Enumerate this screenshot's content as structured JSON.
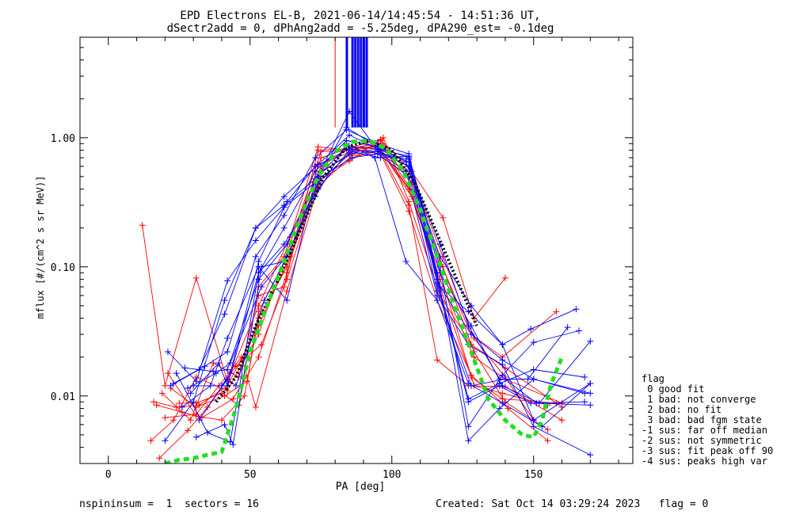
{
  "title": {
    "line1": "EPD Electrons EL-B, 2021-06-14/14:45:54 - 14:51:36 UT,",
    "line2": "dSectr2add = 0, dPhAng2add = -5.25deg, dPA290_est=  -0.1deg"
  },
  "footer": {
    "left": "nspininsum =  1  sectors = 16",
    "right": "Created: Sat Oct 14 03:29:24 2023   flag = 0"
  },
  "legend": {
    "title": "flag",
    "items": [
      " 0 good fit",
      " 1 bad: not converge",
      " 2 bad: no fit",
      " 3 bad: bad fgm state",
      "-1 sus: far off median",
      "-2 sus: not symmetric",
      "-3 sus: fit peak off 90",
      "-4 sus: peaks high var"
    ]
  },
  "colors": {
    "red_series": "#ff0000",
    "blue_series": "#0000ff",
    "fit_green": "#22dd22",
    "median_black": "#000000"
  },
  "chart_data": {
    "type": "line",
    "title": "EPD Electrons EL-B, 2021-06-14/14:45:54 - 14:51:36 UT,",
    "subtitle": "dSectr2add = 0, dPhAng2add = -5.25deg, dPA290_est=  -0.1deg",
    "xlabel": "PA [deg]",
    "ylabel": "mflux [#/(cm^2 s sr MeV)]",
    "xlim": [
      -10,
      185
    ],
    "ylim": [
      0.003,
      6.0
    ],
    "yscale": "log",
    "xticks": [
      0,
      50,
      100,
      150
    ],
    "xtick_labels": [
      "0",
      "50",
      "100",
      "150"
    ],
    "yticks": [
      0.01,
      0.1,
      1.0
    ],
    "ytick_labels": [
      "0.01",
      "0.10",
      "1.00"
    ],
    "grid": false,
    "series": [
      {
        "color": "#ff0000",
        "x": [
          12,
          20,
          31,
          42,
          53,
          64,
          75,
          86,
          96,
          107,
          118,
          129,
          140
        ],
        "y": [
          0.21,
          0.012,
          0.082,
          0.013,
          0.05,
          0.17,
          0.6,
          0.85,
          0.97,
          0.55,
          0.24,
          0.04,
          0.082
        ]
      },
      {
        "color": "#ff0000",
        "x": [
          15,
          23,
          31,
          42,
          53,
          64,
          75,
          86,
          96,
          107,
          118,
          129,
          140,
          150
        ],
        "y": [
          0.0045,
          0.0065,
          0.014,
          0.011,
          0.03,
          0.15,
          0.78,
          0.8,
          0.95,
          0.5,
          0.12,
          0.028,
          0.014,
          0.0065
        ]
      },
      {
        "color": "#ff0000",
        "x": [
          16,
          24,
          32,
          42,
          53,
          64,
          75,
          86,
          96,
          107,
          118,
          129,
          140,
          155
        ],
        "y": [
          0.009,
          0.0082,
          0.0085,
          0.012,
          0.035,
          0.12,
          0.55,
          0.75,
          0.9,
          0.45,
          0.1,
          0.022,
          0.009,
          0.0055
        ]
      },
      {
        "color": "#ff0000",
        "x": [
          17,
          26,
          33,
          44,
          53,
          63,
          74,
          85,
          96,
          107,
          117,
          128,
          139,
          158
        ],
        "y": [
          0.0085,
          0.0075,
          0.0068,
          0.0095,
          0.02,
          0.09,
          0.62,
          0.77,
          0.82,
          0.38,
          0.07,
          0.014,
          0.0095,
          0.0088
        ]
      },
      {
        "color": "#ff0000",
        "x": [
          18,
          28,
          35,
          45,
          54,
          63,
          74,
          85,
          97,
          106,
          117,
          128,
          140,
          160
        ],
        "y": [
          0.0033,
          0.0054,
          0.0082,
          0.017,
          0.025,
          0.08,
          0.46,
          0.66,
          1.0,
          0.32,
          0.06,
          0.025,
          0.0165,
          0.0082
        ]
      },
      {
        "color": "#ff0000",
        "x": [
          19,
          29,
          37,
          46,
          53,
          62,
          74,
          84,
          95,
          106,
          116,
          127,
          140,
          160
        ],
        "y": [
          0.0105,
          0.0065,
          0.018,
          0.014,
          0.06,
          0.07,
          0.8,
          0.82,
          0.86,
          0.3,
          0.019,
          0.012,
          0.0118,
          0.0065
        ]
      },
      {
        "color": "#ff0000",
        "x": [
          20,
          31,
          39,
          47,
          52,
          63,
          74,
          86,
          96,
          106,
          116,
          128,
          141,
          155
        ],
        "y": [
          0.0068,
          0.0072,
          0.012,
          0.02,
          0.0082,
          0.065,
          0.42,
          0.73,
          0.75,
          0.27,
          0.055,
          0.0145,
          0.008,
          0.0045
        ]
      },
      {
        "color": "#ff0000",
        "x": [
          21,
          31,
          40,
          48,
          53,
          63,
          75,
          86,
          96,
          107,
          117,
          129,
          140,
          160
        ],
        "y": [
          0.015,
          0.007,
          0.0065,
          0.01,
          0.04,
          0.1,
          0.5,
          0.7,
          0.8,
          0.35,
          0.08,
          0.02,
          0.0135,
          0.0088
        ]
      },
      {
        "color": "#ff0000",
        "x": [
          22,
          31,
          41,
          49,
          53,
          64,
          75,
          86,
          96,
          106,
          117,
          128,
          139,
          158
        ],
        "y": [
          0.0115,
          0.0082,
          0.01,
          0.013,
          0.045,
          0.13,
          0.7,
          0.84,
          0.9,
          0.42,
          0.11,
          0.03,
          0.02,
          0.045
        ]
      },
      {
        "color": "#ff0000",
        "x": [
          25,
          31,
          40,
          46,
          53,
          62,
          74,
          85,
          95,
          106,
          117,
          129,
          139,
          155
        ],
        "y": [
          0.0088,
          0.0088,
          0.0105,
          0.0085,
          0.07,
          0.12,
          0.85,
          0.8,
          0.85,
          0.4,
          0.09,
          0.012,
          0.0105,
          0.0085
        ]
      }
    ],
    "series_blue": [
      {
        "color": "#0000ff",
        "x": [
          20,
          30,
          41,
          52,
          62,
          74,
          85,
          95,
          106,
          117,
          127,
          138,
          148,
          162
        ],
        "y": [
          0.0045,
          0.009,
          0.055,
          0.2,
          0.3,
          0.5,
          1.6,
          0.8,
          0.6,
          0.15,
          0.035,
          0.0135,
          0.0135,
          0.034
        ]
      },
      {
        "color": "#0000ff",
        "x": [
          21,
          31,
          42,
          52,
          62,
          73,
          84,
          95,
          105,
          117,
          128,
          139,
          149,
          165
        ],
        "y": [
          0.022,
          0.013,
          0.078,
          0.16,
          0.29,
          0.45,
          1.2,
          0.85,
          0.65,
          0.12,
          0.05,
          0.025,
          0.033,
          0.047
        ]
      },
      {
        "color": "#0000ff",
        "x": [
          22,
          32,
          41,
          52,
          62,
          74,
          85,
          95,
          106,
          117,
          127,
          139,
          150,
          166
        ],
        "y": [
          0.012,
          0.016,
          0.043,
          0.2,
          0.35,
          0.62,
          1.05,
          0.82,
          0.72,
          0.1,
          0.0058,
          0.0145,
          0.026,
          0.032
        ]
      },
      {
        "color": "#0000ff",
        "x": [
          23,
          34,
          42,
          52,
          62,
          73,
          84,
          95,
          106,
          116,
          127,
          138,
          150,
          168
        ],
        "y": [
          0.0125,
          0.017,
          0.022,
          0.12,
          0.25,
          0.7,
          1.15,
          0.9,
          0.75,
          0.09,
          0.0045,
          0.008,
          0.0135,
          0.0105
        ]
      },
      {
        "color": "#0000ff",
        "x": [
          24,
          35,
          43,
          53,
          62,
          73,
          84,
          95,
          106,
          116,
          127,
          138,
          150,
          168
        ],
        "y": [
          0.015,
          0.0052,
          0.0044,
          0.09,
          0.2,
          0.55,
          0.95,
          0.85,
          0.7,
          0.08,
          0.0095,
          0.0125,
          0.016,
          0.014
        ]
      },
      {
        "color": "#0000ff",
        "x": [
          26,
          36,
          42,
          53,
          63,
          73,
          84,
          95,
          106,
          116,
          127,
          138,
          149,
          168
        ],
        "y": [
          0.0082,
          0.012,
          0.028,
          0.1,
          0.055,
          0.48,
          0.85,
          0.82,
          0.65,
          0.075,
          0.009,
          0.012,
          0.0088,
          0.009
        ]
      },
      {
        "color": "#0000ff",
        "x": [
          27,
          37,
          42,
          53,
          63,
          74,
          85,
          95,
          105,
          116,
          127,
          139,
          150,
          170
        ],
        "y": [
          0.0165,
          0.0155,
          0.016,
          0.08,
          0.15,
          0.52,
          0.75,
          0.78,
          0.55,
          0.06,
          0.025,
          0.0175,
          0.0058,
          0.0035
        ]
      },
      {
        "color": "#0000ff",
        "x": [
          28,
          38,
          43,
          54,
          64,
          74,
          86,
          95,
          106,
          117,
          128,
          139,
          150,
          170
        ],
        "y": [
          0.0115,
          0.015,
          0.018,
          0.07,
          0.13,
          0.48,
          0.7,
          0.75,
          0.5,
          0.07,
          0.03,
          0.019,
          0.0135,
          0.0105
        ]
      },
      {
        "color": "#0000ff",
        "x": [
          29,
          39,
          42,
          53,
          62,
          74,
          85,
          95,
          106,
          116,
          128,
          140,
          151,
          170
        ],
        "y": [
          0.0105,
          0.018,
          0.012,
          0.09,
          0.15,
          0.4,
          0.8,
          0.78,
          0.6,
          0.065,
          0.012,
          0.0135,
          0.0088,
          0.0085
        ]
      },
      {
        "color": "#0000ff",
        "x": [
          30,
          40,
          43,
          53,
          63,
          73,
          85,
          96,
          106,
          117,
          127,
          139,
          150,
          170
        ],
        "y": [
          0.012,
          0.012,
          0.015,
          0.11,
          0.32,
          0.6,
          0.82,
          0.75,
          0.68,
          0.07,
          0.045,
          0.025,
          0.0065,
          0.0125
        ]
      },
      {
        "color": "#0000ff",
        "x": [
          31,
          41,
          44,
          54,
          62,
          73,
          84,
          94,
          105,
          116,
          127,
          139,
          153,
          170
        ],
        "y": [
          0.0048,
          0.006,
          0.0042,
          0.1,
          0.11,
          0.35,
          0.9,
          0.7,
          0.11,
          0.055,
          0.0125,
          0.0088,
          0.0058,
          0.0125
        ]
      },
      {
        "color": "#0000ff",
        "x": [
          32,
          42,
          45,
          55,
          63,
          74,
          86,
          96,
          106,
          117,
          128,
          139,
          152,
          170
        ],
        "y": [
          0.0065,
          0.0135,
          0.012,
          0.055,
          0.12,
          0.45,
          0.78,
          0.7,
          0.72,
          0.09,
          0.035,
          0.012,
          0.0088,
          0.0265
        ]
      }
    ],
    "median": {
      "color": "#000000",
      "style": "dotted",
      "x": [
        38,
        45,
        52,
        60,
        68,
        76,
        84,
        92,
        100,
        108,
        116,
        124,
        130
      ],
      "y": [
        0.009,
        0.014,
        0.035,
        0.08,
        0.2,
        0.5,
        0.85,
        0.95,
        0.8,
        0.45,
        0.18,
        0.07,
        0.035
      ]
    },
    "fit": {
      "color": "#22dd22",
      "style": "dashed",
      "x": [
        20,
        25,
        30,
        35,
        40,
        45,
        50,
        56,
        62,
        68,
        74,
        80,
        86,
        92,
        98,
        104,
        110,
        116,
        122,
        128,
        134,
        140,
        146,
        150,
        153,
        156,
        160
      ],
      "y": [
        0.003,
        0.0032,
        0.0033,
        0.0035,
        0.0037,
        0.008,
        0.022,
        0.05,
        0.11,
        0.25,
        0.5,
        0.78,
        0.93,
        0.95,
        0.82,
        0.55,
        0.28,
        0.12,
        0.05,
        0.022,
        0.0095,
        0.0065,
        0.005,
        0.0048,
        0.0065,
        0.012,
        0.02
      ]
    },
    "vertical_spikes": {
      "red_x": [
        80
      ],
      "blue_x": [
        84,
        86,
        87,
        88,
        89,
        90,
        91
      ],
      "ymin": 1.2
    }
  }
}
